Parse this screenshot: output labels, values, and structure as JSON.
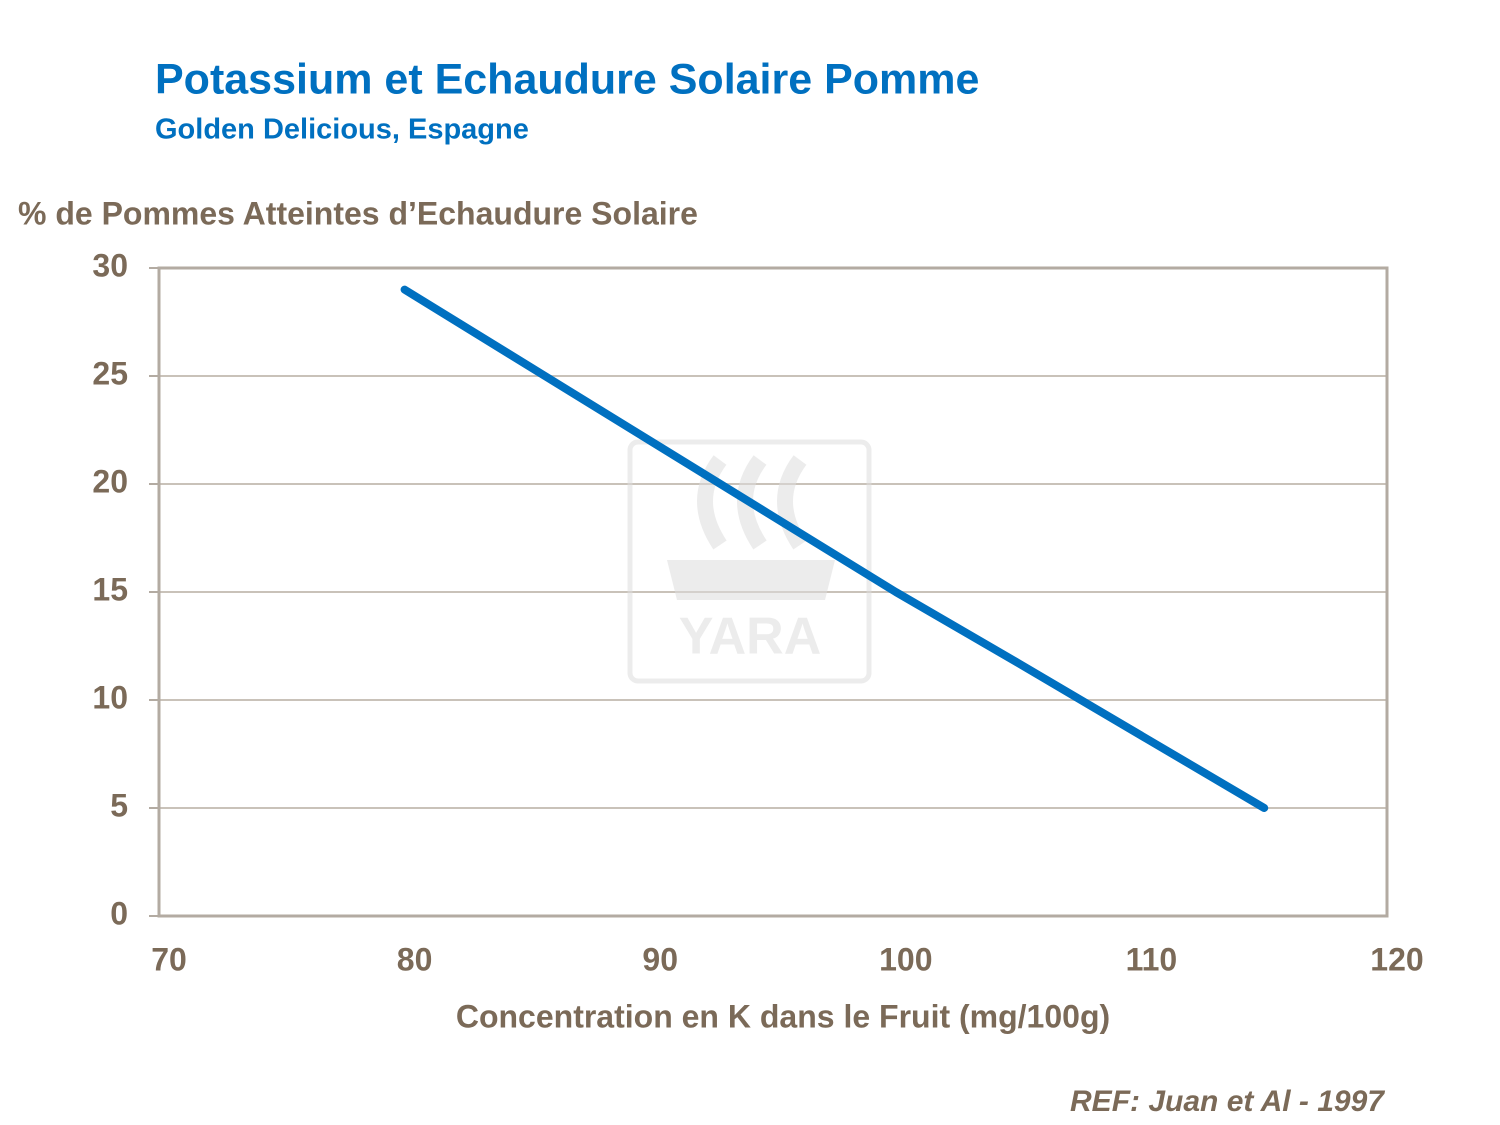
{
  "chart_data": {
    "type": "line",
    "title": "Potassium et Echaudure Solaire Pomme",
    "subtitle": "Golden Delicious, Espagne",
    "y_label": "% de Pommes Atteintes d’Echaudure Solaire",
    "x_label": "Concentration en K dans le Fruit (mg/100g)",
    "reference": "REF: Juan et Al - 1997",
    "watermark": "YARA",
    "x": [
      80,
      90,
      100,
      105,
      115
    ],
    "series": [
      {
        "name": "Echaudure",
        "color": "#0070c0",
        "values": [
          29,
          22,
          15,
          11.7,
          5
        ]
      }
    ],
    "xlim": [
      70,
      120
    ],
    "xticks": [
      70,
      80,
      90,
      100,
      110,
      120
    ],
    "ylim": [
      0,
      30
    ],
    "yticks": [
      0,
      5,
      10,
      15,
      20,
      25,
      30
    ],
    "grid": true
  }
}
